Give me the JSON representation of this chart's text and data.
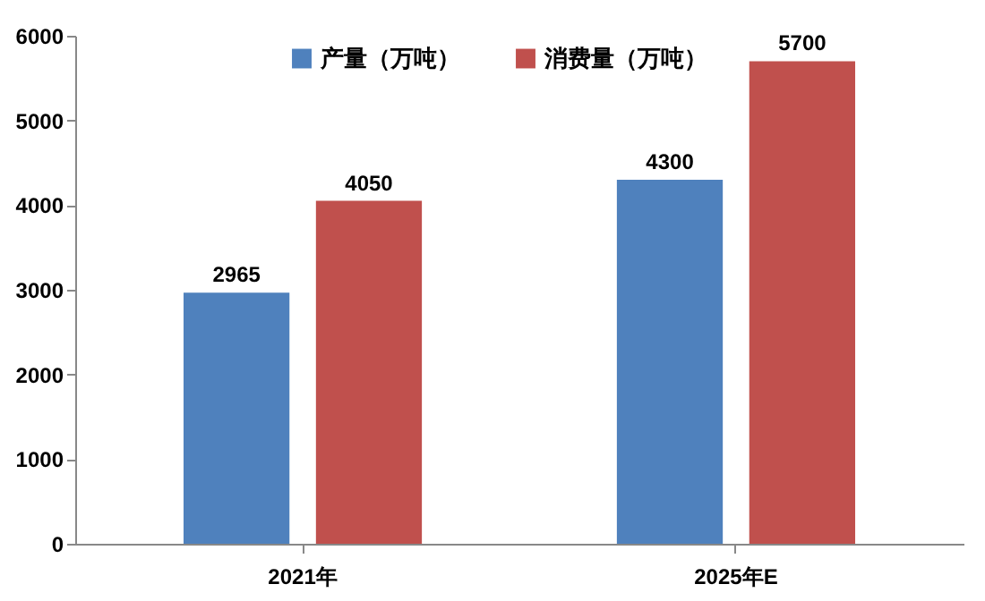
{
  "chart_data": {
    "type": "bar",
    "categories": [
      "2021年",
      "2025年E"
    ],
    "series": [
      {
        "name": "产量（万吨）",
        "color": "#4f81bd",
        "values": [
          2965,
          4300
        ]
      },
      {
        "name": "消费量（万吨）",
        "color": "#c0504d",
        "values": [
          4050,
          5700
        ]
      }
    ],
    "ylim": [
      0,
      6000
    ],
    "yticks": [
      0,
      1000,
      2000,
      3000,
      4000,
      5000,
      6000
    ],
    "data_labels": true,
    "legend": "top",
    "grid": false
  }
}
